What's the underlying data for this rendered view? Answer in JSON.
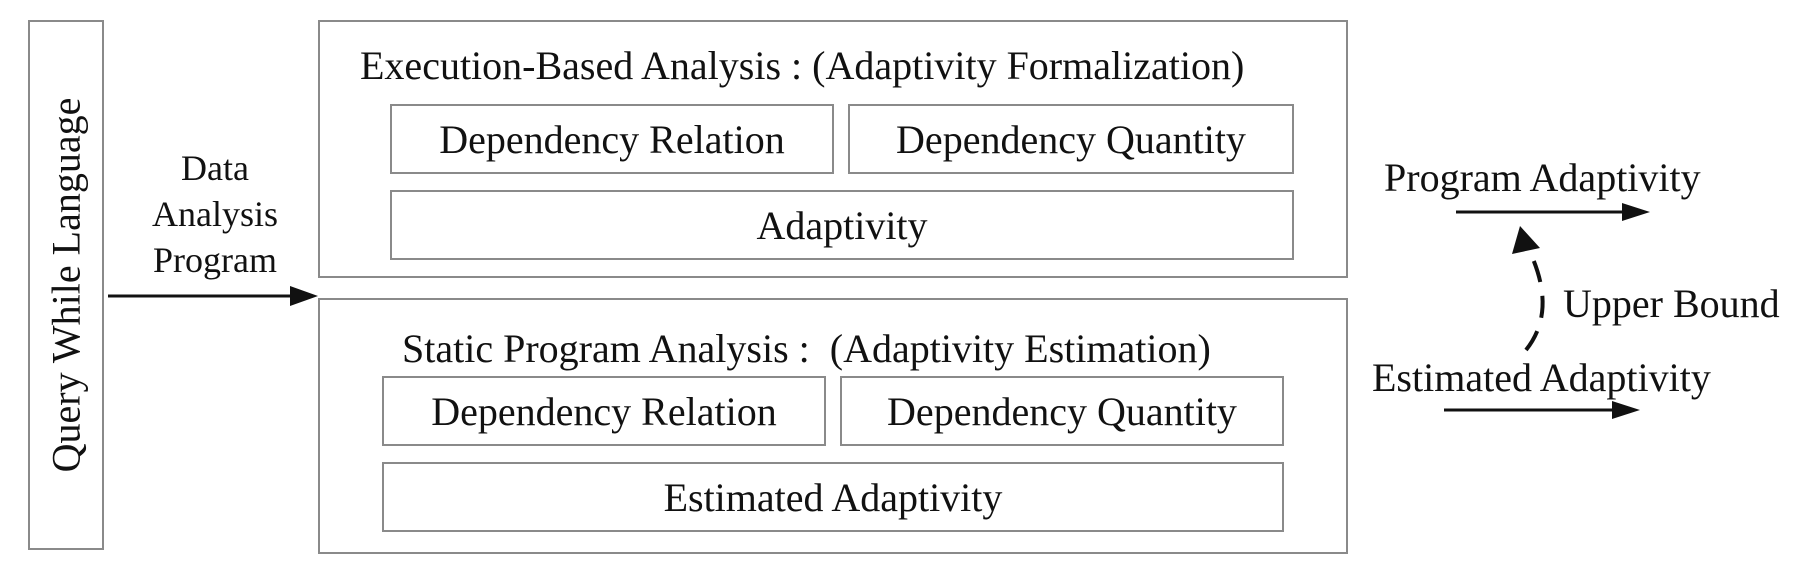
{
  "left_panel": {
    "language": "Query While Language"
  },
  "input": {
    "lines": [
      "Data",
      "Analysis",
      "Program"
    ]
  },
  "execution": {
    "title": "Execution-Based Analysis : (Adaptivity Formalization)",
    "relation": "Dependency Relation",
    "quantity": "Dependency Quantity",
    "result": "Adaptivity"
  },
  "static": {
    "title": "Static Program Analysis :  (Adaptivity Estimation)",
    "relation": "Dependency Relation",
    "quantity": "Dependency Quantity",
    "result": "Estimated Adaptivity"
  },
  "outputs": {
    "program_adaptivity": "Program Adaptivity",
    "upper_bound": "Upper Bound",
    "estimated_adaptivity": "Estimated Adaptivity"
  },
  "colors": {
    "border": "#8a8a8a",
    "ink": "#111111"
  }
}
